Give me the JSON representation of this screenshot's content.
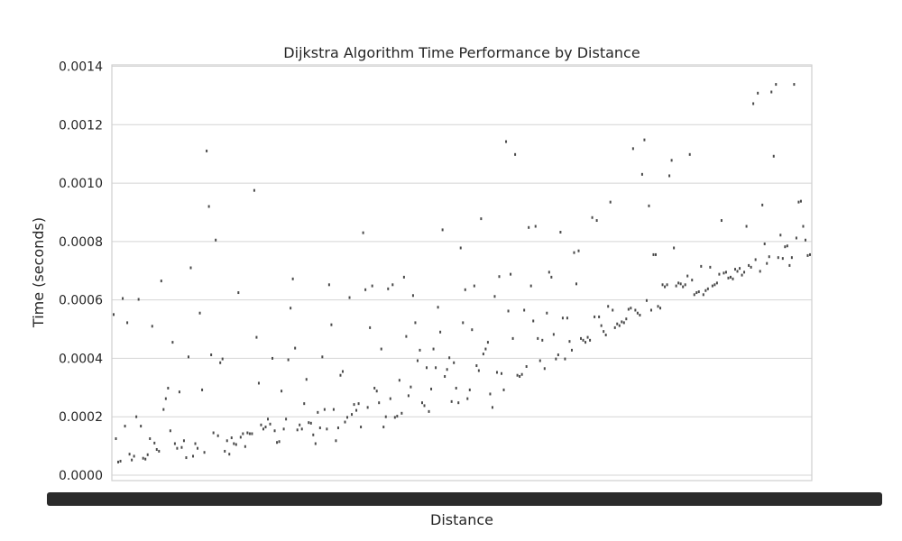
{
  "chart_data": {
    "type": "scatter",
    "title": "Dijkstra Algorithm Time Performance by Distance",
    "xlabel": "Distance",
    "ylabel": "Time (seconds)",
    "x_axis": {
      "kind": "categorical",
      "note": "one category per point; tick labels overlap into a solid band"
    },
    "ylim": [
      0,
      0.0014
    ],
    "yticks": [
      {
        "value": 0.0,
        "label": "0.0000"
      },
      {
        "value": 0.0002,
        "label": "0.0002"
      },
      {
        "value": 0.0004,
        "label": "0.0004"
      },
      {
        "value": 0.0006,
        "label": "0.0006"
      },
      {
        "value": 0.0008,
        "label": "0.0008"
      },
      {
        "value": 0.001,
        "label": "0.0010"
      },
      {
        "value": 0.0012,
        "label": "0.0012"
      },
      {
        "value": 0.0014,
        "label": "0.0014"
      }
    ],
    "grid": true,
    "series": [
      {
        "values": [
          0.00055,
          0.000125,
          4.5e-05,
          4.8e-05,
          0.000605,
          0.000168,
          0.000522,
          7.2e-05,
          5.2e-05,
          6.5e-05,
          0.0002,
          0.000602,
          0.000168,
          5.8e-05,
          5.5e-05,
          7e-05,
          0.000125,
          0.00051,
          0.00011,
          8.8e-05,
          8.2e-05,
          0.000665,
          0.000225,
          0.000262,
          0.000298,
          0.000152,
          0.000455,
          0.000108,
          9.2e-05,
          0.000285,
          9.5e-05,
          0.000118,
          6e-05,
          0.000405,
          0.00071,
          6.5e-05,
          0.000108,
          9.2e-05,
          0.000555,
          0.000292,
          7.8e-05,
          0.00111,
          0.00092,
          0.000412,
          0.000145,
          0.000805,
          0.000135,
          0.000385,
          0.000398,
          8.2e-05,
          0.000118,
          7.2e-05,
          0.000128,
          0.000108,
          0.000105,
          0.000625,
          0.00013,
          0.000142,
          9.8e-05,
          0.000145,
          0.000142,
          0.000142,
          0.000975,
          0.000472,
          0.000315,
          0.000172,
          0.000158,
          0.000165,
          0.000192,
          0.000175,
          0.0004,
          0.000152,
          0.000112,
          0.000115,
          0.000288,
          0.000158,
          0.000192,
          0.000395,
          0.000572,
          0.000672,
          0.000435,
          0.000155,
          0.000172,
          0.000158,
          0.000245,
          0.000328,
          0.00018,
          0.000178,
          0.000138,
          0.000108,
          0.000215,
          0.000162,
          0.000405,
          0.000225,
          0.000158,
          0.000652,
          0.000515,
          0.000225,
          0.000118,
          0.000162,
          0.000342,
          0.000355,
          0.000182,
          0.000198,
          0.000608,
          0.000208,
          0.000242,
          0.000222,
          0.000245,
          0.000165,
          0.00083,
          0.000635,
          0.000232,
          0.000505,
          0.000648,
          0.000298,
          0.000288,
          0.000248,
          0.000432,
          0.000165,
          0.0002,
          0.000638,
          0.000262,
          0.000652,
          0.000198,
          0.000202,
          0.000325,
          0.000212,
          0.000678,
          0.000475,
          0.000272,
          0.000302,
          0.000615,
          0.000522,
          0.000392,
          0.000428,
          0.000248,
          0.000238,
          0.000368,
          0.000218,
          0.000295,
          0.000432,
          0.000368,
          0.000575,
          0.00049,
          0.00084,
          0.000338,
          0.000362,
          0.000402,
          0.000252,
          0.000385,
          0.000298,
          0.000248,
          0.000778,
          0.000522,
          0.000635,
          0.000262,
          0.000292,
          0.000498,
          0.000648,
          0.000375,
          0.000358,
          0.000878,
          0.000415,
          0.000432,
          0.000455,
          0.000278,
          0.000232,
          0.000612,
          0.000352,
          0.00068,
          0.000348,
          0.000292,
          0.001142,
          0.000562,
          0.000688,
          0.000468,
          0.001098,
          0.000342,
          0.000338,
          0.000345,
          0.000565,
          0.000372,
          0.000848,
          0.000648,
          0.000528,
          0.000852,
          0.000468,
          0.000392,
          0.000462,
          0.000365,
          0.000555,
          0.000695,
          0.000678,
          0.000482,
          0.000398,
          0.000412,
          0.000832,
          0.000538,
          0.000398,
          0.000538,
          0.000458,
          0.000428,
          0.000762,
          0.000655,
          0.000768,
          0.000468,
          0.000462,
          0.000455,
          0.000472,
          0.000462,
          0.000882,
          0.000542,
          0.000872,
          0.000542,
          0.000512,
          0.000492,
          0.00048,
          0.000578,
          0.000935,
          0.000565,
          0.000505,
          0.000518,
          0.000512,
          0.000525,
          0.000522,
          0.000535,
          0.000568,
          0.000572,
          0.001118,
          0.000565,
          0.000555,
          0.000548,
          0.00103,
          0.001148,
          0.000598,
          0.000922,
          0.000565,
          0.000755,
          0.000755,
          0.000578,
          0.000572,
          0.000652,
          0.000645,
          0.000652,
          0.001025,
          0.001078,
          0.000778,
          0.000648,
          0.000658,
          0.000655,
          0.000645,
          0.000652,
          0.000682,
          0.001098,
          0.000668,
          0.000618,
          0.000625,
          0.000628,
          0.000715,
          0.000618,
          0.000632,
          0.000638,
          0.000712,
          0.000648,
          0.000652,
          0.000658,
          0.000688,
          0.000872,
          0.000692,
          0.000695,
          0.000675,
          0.000678,
          0.000672,
          0.000705,
          0.000698,
          0.000708,
          0.000685,
          0.000695,
          0.000852,
          0.000718,
          0.000712,
          0.001272,
          0.000738,
          0.001308,
          0.000698,
          0.000925,
          0.000792,
          0.000725,
          0.000748,
          0.001312,
          0.001092,
          0.001338,
          0.000745,
          0.000822,
          0.000742,
          0.000782,
          0.000785,
          0.000718,
          0.000745,
          0.001338,
          0.000812,
          0.000935,
          0.000938,
          0.000852,
          0.000805,
          0.000752,
          0.000755
        ]
      }
    ]
  }
}
